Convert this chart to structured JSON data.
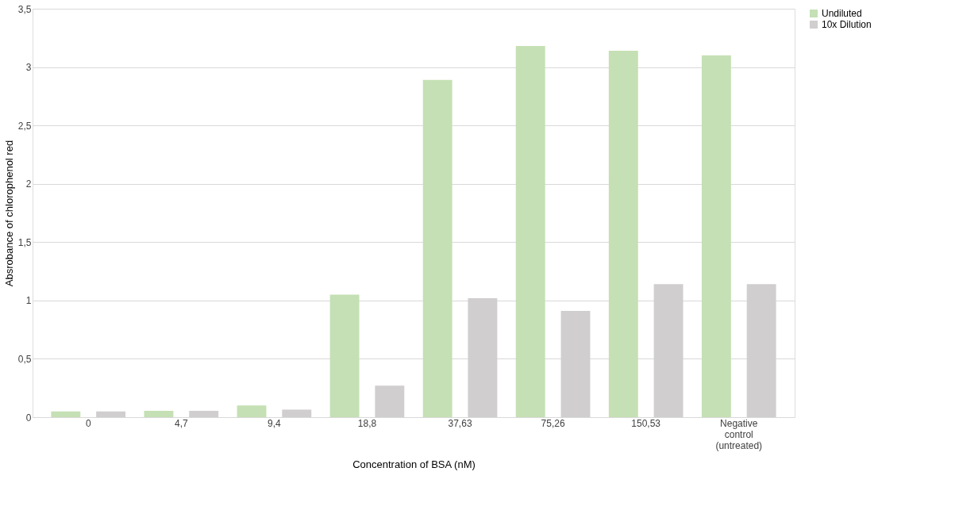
{
  "chart_data": {
    "type": "bar",
    "xlabel": "Concentration of BSA (nM)",
    "ylabel": "Absrobance of chlorophenol red",
    "categories": [
      "0",
      "4,7",
      "9,4",
      "18,8",
      "37,63",
      "75,26",
      "150,53",
      "Negative control (untreated)"
    ],
    "series": [
      {
        "name": "Undiluted",
        "color": "#c5e0b4",
        "values": [
          0.05,
          0.055,
          0.1,
          1.05,
          2.89,
          3.18,
          3.14,
          3.1
        ]
      },
      {
        "name": "10x Dilution",
        "color": "#d0cece",
        "values": [
          0.05,
          0.055,
          0.065,
          0.27,
          1.02,
          0.91,
          1.14,
          1.14
        ]
      }
    ],
    "ylim": [
      0,
      3.5
    ],
    "yticks": [
      0,
      {
        "value": 0.5,
        "label": "0,5"
      },
      1,
      {
        "value": 1.5,
        "label": "1,5"
      },
      2,
      {
        "value": 2.5,
        "label": "2,5"
      },
      3,
      {
        "value": 3.5,
        "label": "3,5"
      }
    ],
    "grid": "y",
    "legend": "right"
  }
}
